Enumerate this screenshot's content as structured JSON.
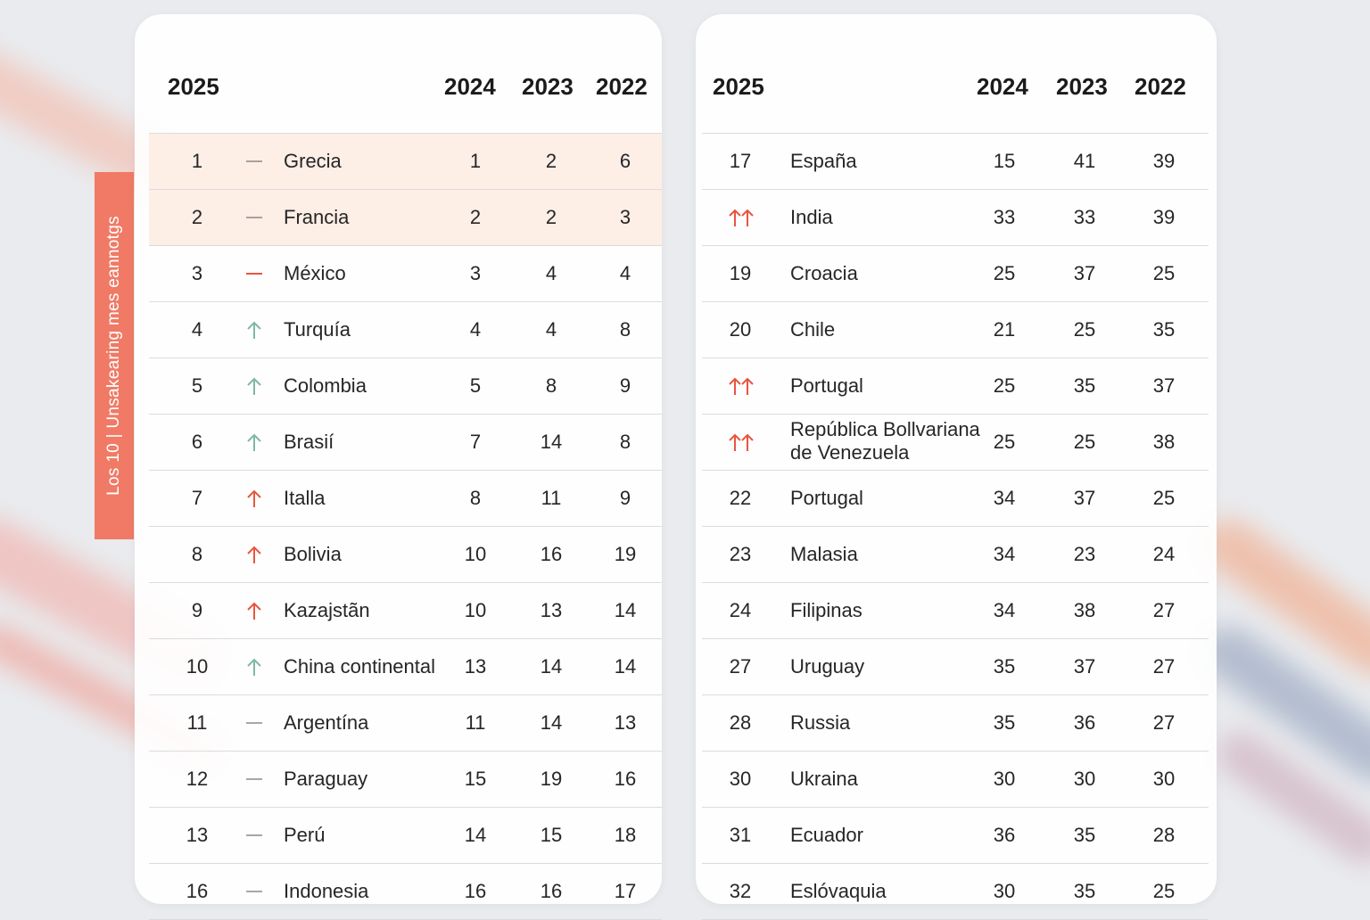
{
  "side_label": "Los 10 | Unsakearing mes eannotgs",
  "colors": {
    "accent": "#f07a65",
    "up_green": "#7fb8a6",
    "up_red": "#e8553f",
    "dash_gray": "#8a8a8a",
    "dash_red": "#e8553f",
    "highlight": "#fdeee6"
  },
  "left": {
    "headers": {
      "rank": "2025",
      "y2024": "2024",
      "y2023": "2023",
      "y2022": "2022"
    },
    "rows": [
      {
        "rank": "1",
        "trend": "dash",
        "name": "Grecia",
        "y2024": "1",
        "y2023": "2",
        "y2022": "6",
        "highlight": true
      },
      {
        "rank": "2",
        "trend": "dash",
        "name": "Francia",
        "y2024": "2",
        "y2023": "2",
        "y2022": "3",
        "highlight": true
      },
      {
        "rank": "3",
        "trend": "dash-red",
        "name": "México",
        "y2024": "3",
        "y2023": "4",
        "y2022": "4"
      },
      {
        "rank": "4",
        "trend": "up-green",
        "name": "Turquía",
        "y2024": "4",
        "y2023": "4",
        "y2022": "8"
      },
      {
        "rank": "5",
        "trend": "up-green",
        "name": "Colombia",
        "y2024": "5",
        "y2023": "8",
        "y2022": "9"
      },
      {
        "rank": "6",
        "trend": "up-green",
        "name": "Brasií",
        "y2024": "7",
        "y2023": "14",
        "y2022": "8"
      },
      {
        "rank": "7",
        "trend": "up-red",
        "name": "Italla",
        "y2024": "8",
        "y2023": "11",
        "y2022": "9"
      },
      {
        "rank": "8",
        "trend": "up-red",
        "name": "Bolivia",
        "y2024": "10",
        "y2023": "16",
        "y2022": "19"
      },
      {
        "rank": "9",
        "trend": "up-red",
        "name": "Kazajstãn",
        "y2024": "10",
        "y2023": "13",
        "y2022": "14"
      },
      {
        "rank": "10",
        "trend": "up-green",
        "name": "China continental",
        "y2024": "13",
        "y2023": "14",
        "y2022": "14"
      },
      {
        "rank": "11",
        "trend": "dash",
        "name": "Argentína",
        "y2024": "11",
        "y2023": "14",
        "y2022": "13"
      },
      {
        "rank": "12",
        "trend": "dash",
        "name": "Paraguay",
        "y2024": "15",
        "y2023": "19",
        "y2022": "16"
      },
      {
        "rank": "13",
        "trend": "dash",
        "name": "Perú",
        "y2024": "14",
        "y2023": "15",
        "y2022": "18"
      },
      {
        "rank": "16",
        "trend": "dash",
        "name": "Indonesia",
        "y2024": "16",
        "y2023": "16",
        "y2022": "17"
      }
    ]
  },
  "right": {
    "headers": {
      "rank": "2025",
      "y2024": "2024",
      "y2023": "2023",
      "y2022": "2022"
    },
    "rows": [
      {
        "rank": "17",
        "trend": "",
        "name": "España",
        "y2024": "15",
        "y2023": "41",
        "y2022": "39"
      },
      {
        "rank": "",
        "trend": "double-up-red",
        "name": "India",
        "y2024": "33",
        "y2023": "33",
        "y2022": "39"
      },
      {
        "rank": "19",
        "trend": "",
        "name": "Croacia",
        "y2024": "25",
        "y2023": "37",
        "y2022": "25"
      },
      {
        "rank": "20",
        "trend": "",
        "name": "Chile",
        "y2024": "21",
        "y2023": "25",
        "y2022": "35"
      },
      {
        "rank": "",
        "trend": "double-up-red",
        "name": "Portugal",
        "y2024": "25",
        "y2023": "35",
        "y2022": "37"
      },
      {
        "rank": "",
        "trend": "double-up-red",
        "name": "República Bollvariana de Venezuela",
        "y2024": "25",
        "y2023": "25",
        "y2022": "38",
        "two_line": true
      },
      {
        "rank": "22",
        "trend": "",
        "name": "Portugal",
        "y2024": "34",
        "y2023": "37",
        "y2022": "25"
      },
      {
        "rank": "23",
        "trend": "",
        "name": "Malasia",
        "y2024": "34",
        "y2023": "23",
        "y2022": "24"
      },
      {
        "rank": "24",
        "trend": "",
        "name": "Filipinas",
        "y2024": "34",
        "y2023": "38",
        "y2022": "27"
      },
      {
        "rank": "27",
        "trend": "",
        "name": "Uruguay",
        "y2024": "35",
        "y2023": "37",
        "y2022": "27"
      },
      {
        "rank": "28",
        "trend": "",
        "name": "Russia",
        "y2024": "35",
        "y2023": "36",
        "y2022": "27"
      },
      {
        "rank": "30",
        "trend": "",
        "name": "Ukraina",
        "y2024": "30",
        "y2023": "30",
        "y2022": "30"
      },
      {
        "rank": "31",
        "trend": "",
        "name": "Ecuador",
        "y2024": "36",
        "y2023": "35",
        "y2022": "28"
      },
      {
        "rank": "32",
        "trend": "",
        "name": "Eslóvaquia",
        "y2024": "30",
        "y2023": "35",
        "y2022": "25"
      }
    ]
  }
}
